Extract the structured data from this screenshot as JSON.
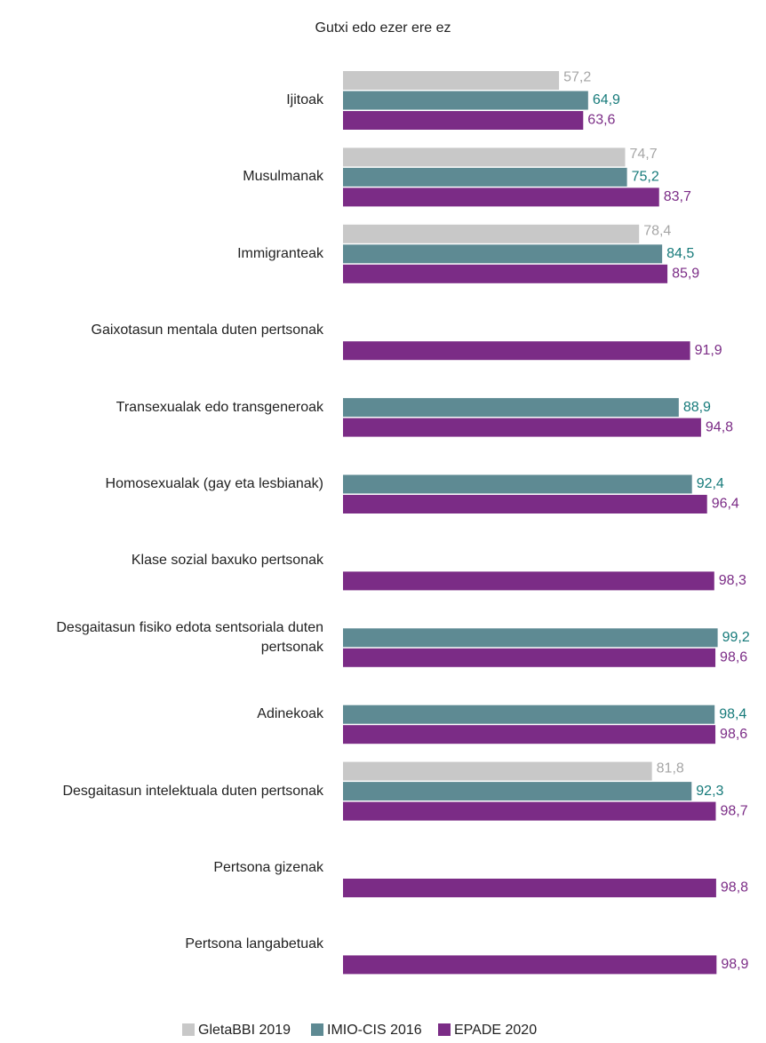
{
  "chart_data": {
    "type": "hbar",
    "title": "Gutxi edo ezer ere ez",
    "categories": [
      "Ijitoak",
      "Musulmanak",
      "Immigranteak",
      "Gaixotasun mentala duten pertsonak",
      "Transexualak edo transgeneroak",
      "Homosexualak (gay eta lesbianak)",
      "Klase sozial baxuko pertsonak",
      "Desgaitasun fisiko edotа sentsoriala duten pertsonak",
      "Adinekoak",
      "Desgaitasun intelektuala duten pertsonak",
      "Pertsona gizenak",
      "Pertsona langabetuak"
    ],
    "xlim": [
      0,
      100
    ],
    "series": [
      {
        "name": "GletaBBI 2019",
        "color": "#c8c8c8",
        "label_color": "#a6a6a6",
        "values": [
          57.2,
          74.7,
          78.4,
          null,
          null,
          null,
          null,
          null,
          null,
          81.8,
          null,
          null
        ],
        "value_labels": [
          "57,2",
          "74,7",
          "78,4",
          null,
          null,
          null,
          null,
          null,
          null,
          "81,8",
          null,
          null
        ]
      },
      {
        "name": "IMIO-CIS 2016",
        "color": "#5e8a93",
        "label_color": "#167a7a",
        "values": [
          64.9,
          75.2,
          84.5,
          null,
          88.9,
          92.4,
          null,
          99.2,
          98.4,
          92.3,
          null,
          null
        ],
        "value_labels": [
          "64,9",
          "75,2",
          "84,5",
          null,
          "88,9",
          "92,4",
          null,
          "99,2",
          "98,4",
          "92,3",
          null,
          null
        ]
      },
      {
        "name": "EPADE 2020",
        "color": "#7b2c86",
        "label_color": "#7b2c86",
        "values": [
          63.6,
          83.7,
          85.9,
          91.9,
          94.8,
          96.4,
          98.3,
          98.6,
          98.6,
          98.7,
          98.8,
          98.9
        ],
        "value_labels": [
          "63,6",
          "83,7",
          "85,9",
          "91,9",
          "94,8",
          "96,4",
          "98,3",
          "98,6",
          "98,6",
          "98,7",
          "98,8",
          "98,9"
        ]
      }
    ]
  }
}
